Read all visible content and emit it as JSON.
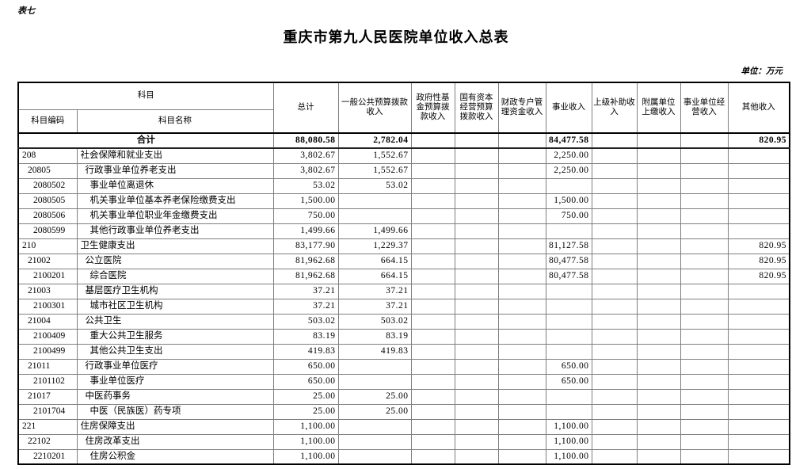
{
  "page": {
    "corner_label": "表七",
    "title": "重庆市第九人民医院单位收入总表",
    "unit_note": "单位：万元"
  },
  "table": {
    "header": {
      "subject_group": "科目",
      "subject_code": "科目编码",
      "subject_name": "科目名称",
      "columns": [
        "总计",
        "一般公共预算拨款收入",
        "政府性基金预算拨款收入",
        "国有资本经营预算拨款收入",
        "财政专户管理资金收入",
        "事业收入",
        "上级补助收入",
        "附属单位上缴收入",
        "事业单位经营收入",
        "其他收入"
      ]
    },
    "total_row": {
      "label": "合计",
      "values": [
        "88,080.58",
        "2,782.04",
        "",
        "",
        "",
        "84,477.58",
        "",
        "",
        "",
        "820.95"
      ]
    },
    "rows": [
      {
        "code": "208",
        "name": "社会保障和就业支出",
        "level": 1,
        "values": [
          "3,802.67",
          "1,552.67",
          "",
          "",
          "",
          "2,250.00",
          "",
          "",
          "",
          ""
        ]
      },
      {
        "code": "20805",
        "name": "行政事业单位养老支出",
        "level": 2,
        "values": [
          "3,802.67",
          "1,552.67",
          "",
          "",
          "",
          "2,250.00",
          "",
          "",
          "",
          ""
        ]
      },
      {
        "code": "2080502",
        "name": "事业单位离退休",
        "level": 3,
        "values": [
          "53.02",
          "53.02",
          "",
          "",
          "",
          "",
          "",
          "",
          "",
          ""
        ]
      },
      {
        "code": "2080505",
        "name": "机关事业单位基本养老保险缴费支出",
        "level": 3,
        "values": [
          "1,500.00",
          "",
          "",
          "",
          "",
          "1,500.00",
          "",
          "",
          "",
          ""
        ]
      },
      {
        "code": "2080506",
        "name": "机关事业单位职业年金缴费支出",
        "level": 3,
        "values": [
          "750.00",
          "",
          "",
          "",
          "",
          "750.00",
          "",
          "",
          "",
          ""
        ]
      },
      {
        "code": "2080599",
        "name": "其他行政事业单位养老支出",
        "level": 3,
        "values": [
          "1,499.66",
          "1,499.66",
          "",
          "",
          "",
          "",
          "",
          "",
          "",
          ""
        ]
      },
      {
        "code": "210",
        "name": "卫生健康支出",
        "level": 1,
        "values": [
          "83,177.90",
          "1,229.37",
          "",
          "",
          "",
          "81,127.58",
          "",
          "",
          "",
          "820.95"
        ]
      },
      {
        "code": "21002",
        "name": "公立医院",
        "level": 2,
        "values": [
          "81,962.68",
          "664.15",
          "",
          "",
          "",
          "80,477.58",
          "",
          "",
          "",
          "820.95"
        ]
      },
      {
        "code": "2100201",
        "name": "综合医院",
        "level": 3,
        "values": [
          "81,962.68",
          "664.15",
          "",
          "",
          "",
          "80,477.58",
          "",
          "",
          "",
          "820.95"
        ]
      },
      {
        "code": "21003",
        "name": "基层医疗卫生机构",
        "level": 2,
        "values": [
          "37.21",
          "37.21",
          "",
          "",
          "",
          "",
          "",
          "",
          "",
          ""
        ]
      },
      {
        "code": "2100301",
        "name": "城市社区卫生机构",
        "level": 3,
        "values": [
          "37.21",
          "37.21",
          "",
          "",
          "",
          "",
          "",
          "",
          "",
          ""
        ]
      },
      {
        "code": "21004",
        "name": "公共卫生",
        "level": 2,
        "values": [
          "503.02",
          "503.02",
          "",
          "",
          "",
          "",
          "",
          "",
          "",
          ""
        ]
      },
      {
        "code": "2100409",
        "name": "重大公共卫生服务",
        "level": 3,
        "values": [
          "83.19",
          "83.19",
          "",
          "",
          "",
          "",
          "",
          "",
          "",
          ""
        ]
      },
      {
        "code": "2100499",
        "name": "其他公共卫生支出",
        "level": 3,
        "values": [
          "419.83",
          "419.83",
          "",
          "",
          "",
          "",
          "",
          "",
          "",
          ""
        ]
      },
      {
        "code": "21011",
        "name": "行政事业单位医疗",
        "level": 2,
        "values": [
          "650.00",
          "",
          "",
          "",
          "",
          "650.00",
          "",
          "",
          "",
          ""
        ]
      },
      {
        "code": "2101102",
        "name": "事业单位医疗",
        "level": 3,
        "values": [
          "650.00",
          "",
          "",
          "",
          "",
          "650.00",
          "",
          "",
          "",
          ""
        ]
      },
      {
        "code": "21017",
        "name": "中医药事务",
        "level": 2,
        "values": [
          "25.00",
          "25.00",
          "",
          "",
          "",
          "",
          "",
          "",
          "",
          ""
        ]
      },
      {
        "code": "2101704",
        "name": "中医（民族医）药专项",
        "level": 3,
        "values": [
          "25.00",
          "25.00",
          "",
          "",
          "",
          "",
          "",
          "",
          "",
          ""
        ]
      },
      {
        "code": "221",
        "name": "住房保障支出",
        "level": 1,
        "values": [
          "1,100.00",
          "",
          "",
          "",
          "",
          "1,100.00",
          "",
          "",
          "",
          ""
        ]
      },
      {
        "code": "22102",
        "name": "住房改革支出",
        "level": 2,
        "values": [
          "1,100.00",
          "",
          "",
          "",
          "",
          "1,100.00",
          "",
          "",
          "",
          ""
        ]
      },
      {
        "code": "2210201",
        "name": "住房公积金",
        "level": 3,
        "values": [
          "1,100.00",
          "",
          "",
          "",
          "",
          "1,100.00",
          "",
          "",
          "",
          ""
        ]
      }
    ]
  }
}
